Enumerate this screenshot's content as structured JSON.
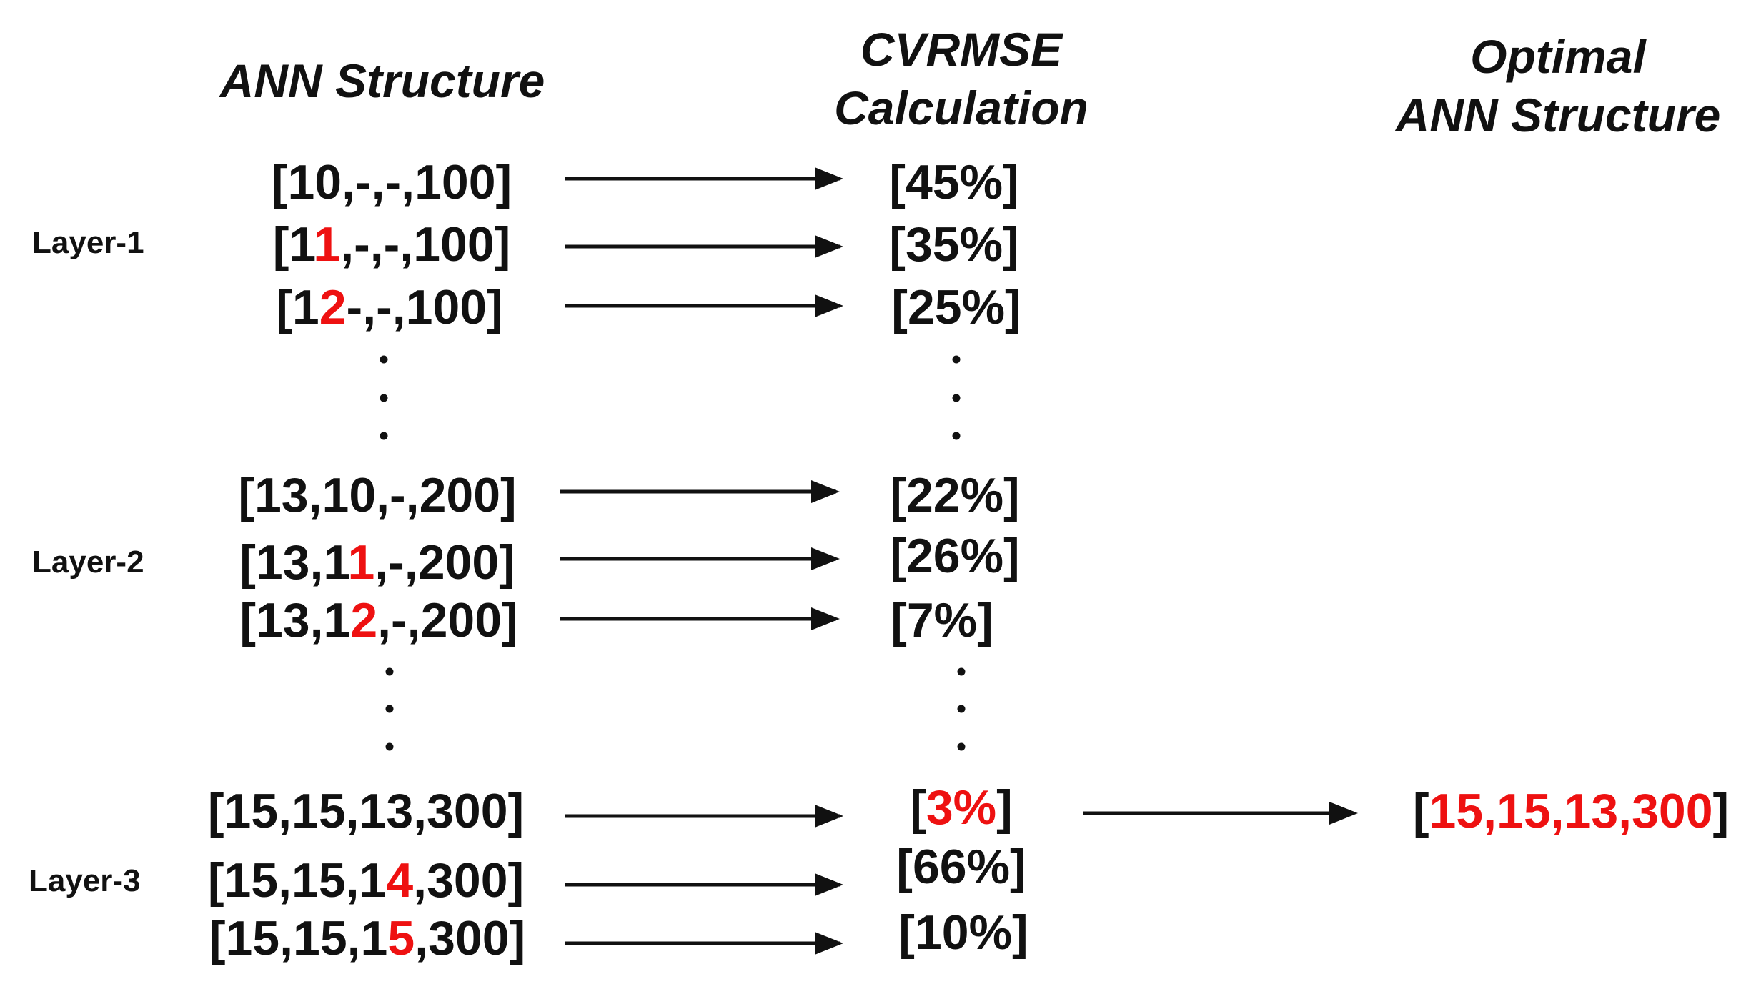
{
  "headers": {
    "ann_structure": "ANN Structure",
    "cvrmse_line1": "CVRMSE",
    "cvrmse_line2": "Calculation",
    "optimal_line1": "Optimal",
    "optimal_line2": "ANN Structure"
  },
  "layers": {
    "layer1": "Layer-1",
    "layer2": "Layer-2",
    "layer3": "Layer-3"
  },
  "rows": [
    {
      "pre": "[10,-,-,100]",
      "hi": "",
      "post": "",
      "cvrmse": "[45%]"
    },
    {
      "pre": "[1",
      "hi": "1",
      "post": ",-,-,100]",
      "cvrmse": "[35%]"
    },
    {
      "pre": "[1",
      "hi": "2",
      "post": "-,-,100]",
      "cvrmse": "[25%]"
    },
    {
      "pre": "[13,10,-,200]",
      "hi": "",
      "post": "",
      "cvrmse": "[22%]"
    },
    {
      "pre": "[13,1",
      "hi": "1",
      "post": ",-,200]",
      "cvrmse": "[26%]"
    },
    {
      "pre": "[13,1",
      "hi": "2",
      "post": ",-,200]",
      "cvrmse": "[7%]"
    },
    {
      "pre": "[15,15,13,300]",
      "hi": "",
      "post": "",
      "cvrmse": "[3%]",
      "cv_pre": "[",
      "cv_hi": "3%",
      "cv_post": "]"
    },
    {
      "pre": "[15,15,1",
      "hi": "4",
      "post": ",300]",
      "cvrmse": "[66%]"
    },
    {
      "pre": "[15,15,1",
      "hi": "5",
      "post": ",300]",
      "cvrmse": "[10%]"
    }
  ],
  "optimal": {
    "open": "[",
    "value": "15,15,13,300",
    "close": "]"
  },
  "colors": {
    "text": "#111111",
    "highlight": "#ee1111",
    "background": "#ffffff"
  }
}
